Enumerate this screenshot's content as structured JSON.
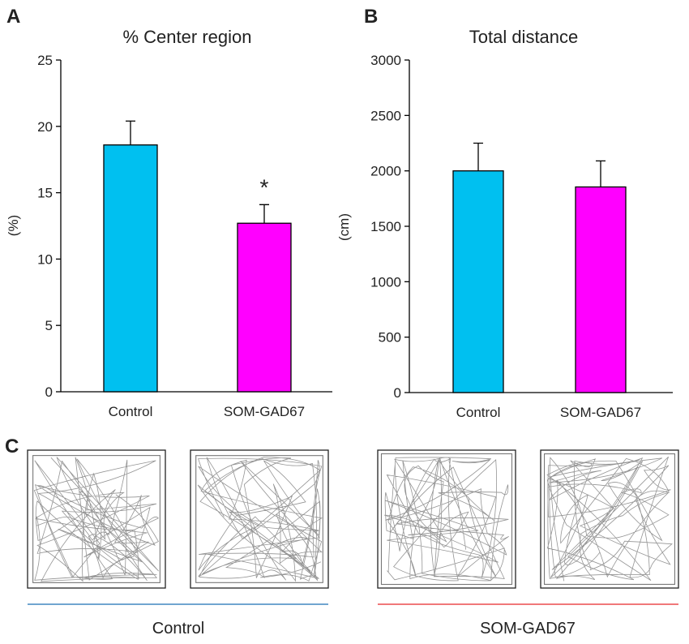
{
  "panels": {
    "a_letter": "A",
    "b_letter": "B",
    "c_letter": "C"
  },
  "chart_data": [
    {
      "type": "bar",
      "title": "% Center region",
      "xlabel": "",
      "ylabel": "(%)",
      "categories": [
        "Control",
        "SOM-GAD67"
      ],
      "values": [
        18.6,
        12.7
      ],
      "errors": [
        1.8,
        1.4
      ],
      "colors": [
        "#00c0f0",
        "#ff00ff"
      ],
      "ylim": [
        0,
        25
      ],
      "yticks": [
        0,
        5,
        10,
        15,
        20,
        25
      ],
      "annotations": [
        {
          "category": "SOM-GAD67",
          "text": "*"
        }
      ],
      "grid": false
    },
    {
      "type": "bar",
      "title": "Total distance",
      "xlabel": "",
      "ylabel": "(cm)",
      "categories": [
        "Control",
        "SOM-GAD67"
      ],
      "values": [
        2000,
        1855
      ],
      "errors": [
        250,
        235
      ],
      "colors": [
        "#00c0f0",
        "#ff00ff"
      ],
      "ylim": [
        0,
        3000
      ],
      "yticks": [
        0,
        500,
        1000,
        1500,
        2000,
        2500,
        3000
      ],
      "annotations": [],
      "grid": false
    }
  ],
  "tracks": {
    "control_label": "Control",
    "som_label": "SOM-GAD67",
    "control_color": "#1a6fb5",
    "som_color": "#e8272b"
  }
}
